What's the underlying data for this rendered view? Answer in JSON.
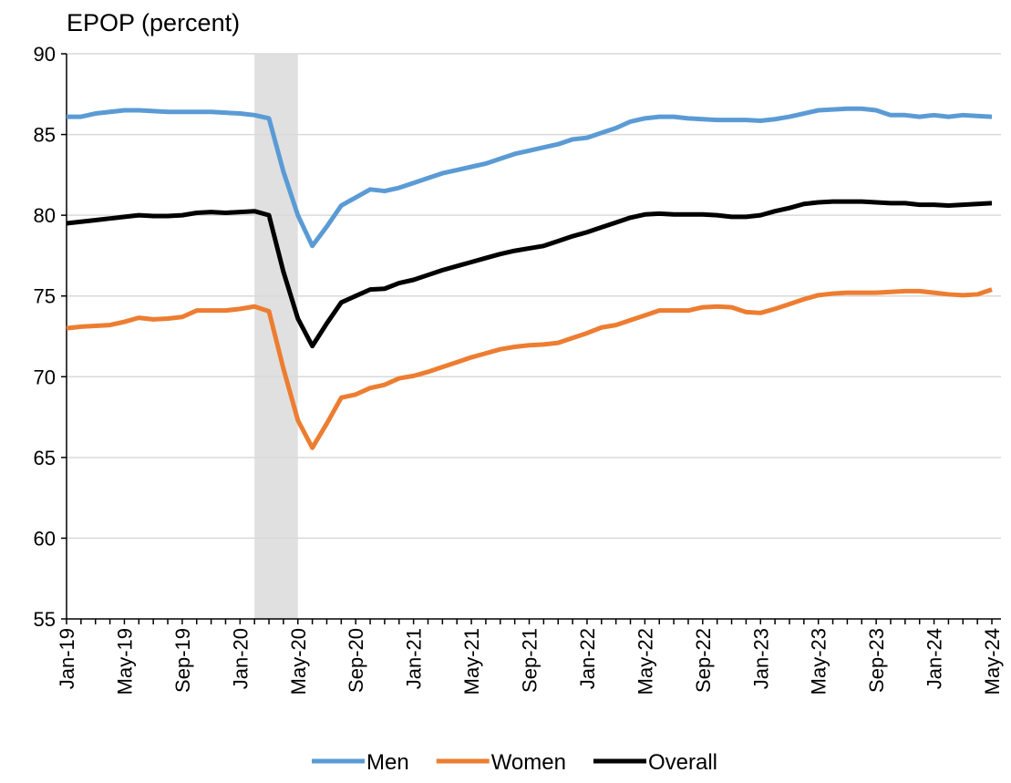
{
  "chart_data": {
    "type": "line",
    "title": "EPOP (percent)",
    "categories": [
      "Jan-19",
      null,
      null,
      null,
      "May-19",
      null,
      null,
      null,
      "Sep-19",
      null,
      null,
      null,
      "Jan-20",
      null,
      null,
      null,
      "May-20",
      null,
      null,
      null,
      "Sep-20",
      null,
      null,
      null,
      "Jan-21",
      null,
      null,
      null,
      "May-21",
      null,
      null,
      null,
      "Sep-21",
      null,
      null,
      null,
      "Jan-22",
      null,
      null,
      null,
      "May-22",
      null,
      null,
      null,
      "Sep-22",
      null,
      null,
      null,
      "Jan-23",
      null,
      null,
      null,
      "May-23",
      null,
      null,
      null,
      "Sep-23",
      null,
      null,
      null,
      "Jan-24",
      null,
      null,
      null,
      "May-24"
    ],
    "series": [
      {
        "name": "Men",
        "color": "#5b9bd5",
        "values": [
          86.1,
          86.1,
          86.3,
          86.4,
          86.5,
          86.5,
          86.45,
          86.4,
          86.4,
          86.4,
          86.4,
          86.35,
          86.3,
          86.2,
          86.0,
          82.7,
          80.0,
          78.1,
          79.3,
          80.6,
          81.1,
          81.6,
          81.5,
          81.7,
          82.0,
          82.3,
          82.6,
          82.8,
          83.0,
          83.2,
          83.5,
          83.8,
          84.0,
          84.2,
          84.4,
          84.7,
          84.8,
          85.1,
          85.4,
          85.8,
          86.0,
          86.1,
          86.1,
          86.0,
          85.95,
          85.9,
          85.9,
          85.9,
          85.85,
          85.95,
          86.1,
          86.3,
          86.5,
          86.55,
          86.6,
          86.6,
          86.5,
          86.2,
          86.2,
          86.1,
          86.2,
          86.1,
          86.2,
          86.15,
          86.1
        ]
      },
      {
        "name": "Women",
        "color": "#ed7d31",
        "values": [
          73.0,
          73.1,
          73.15,
          73.2,
          73.4,
          73.65,
          73.55,
          73.6,
          73.7,
          74.1,
          74.1,
          74.1,
          74.2,
          74.35,
          74.05,
          70.5,
          67.3,
          65.6,
          67.1,
          68.7,
          68.9,
          69.3,
          69.5,
          69.9,
          70.05,
          70.3,
          70.6,
          70.9,
          71.2,
          71.45,
          71.7,
          71.85,
          71.95,
          72.0,
          72.1,
          72.4,
          72.7,
          73.05,
          73.2,
          73.5,
          73.8,
          74.1,
          74.1,
          74.1,
          74.3,
          74.35,
          74.3,
          74.0,
          73.95,
          74.2,
          74.5,
          74.8,
          75.05,
          75.15,
          75.2,
          75.2,
          75.2,
          75.25,
          75.3,
          75.3,
          75.2,
          75.1,
          75.05,
          75.1,
          75.4
        ]
      },
      {
        "name": "Overall",
        "color": "#000000",
        "values": [
          79.5,
          79.6,
          79.7,
          79.8,
          79.9,
          80.0,
          79.95,
          79.95,
          80.0,
          80.15,
          80.2,
          80.15,
          80.2,
          80.25,
          80.0,
          76.5,
          73.6,
          71.9,
          73.3,
          74.6,
          75.0,
          75.4,
          75.45,
          75.8,
          76.0,
          76.3,
          76.6,
          76.85,
          77.1,
          77.35,
          77.6,
          77.8,
          77.95,
          78.1,
          78.4,
          78.7,
          78.95,
          79.25,
          79.55,
          79.85,
          80.05,
          80.1,
          80.05,
          80.05,
          80.05,
          80.0,
          79.9,
          79.9,
          80.0,
          80.25,
          80.45,
          80.7,
          80.8,
          80.85,
          80.85,
          80.85,
          80.8,
          80.75,
          80.75,
          80.65,
          80.65,
          80.6,
          80.65,
          80.7,
          80.75
        ]
      }
    ],
    "shaded_span": {
      "from": 13,
      "to": 16,
      "color": "#e0e0e0"
    },
    "ylim": [
      55,
      90
    ],
    "yticks": [
      55,
      60,
      65,
      70,
      75,
      80,
      85,
      90
    ],
    "grid": true,
    "legend": "bottom"
  }
}
